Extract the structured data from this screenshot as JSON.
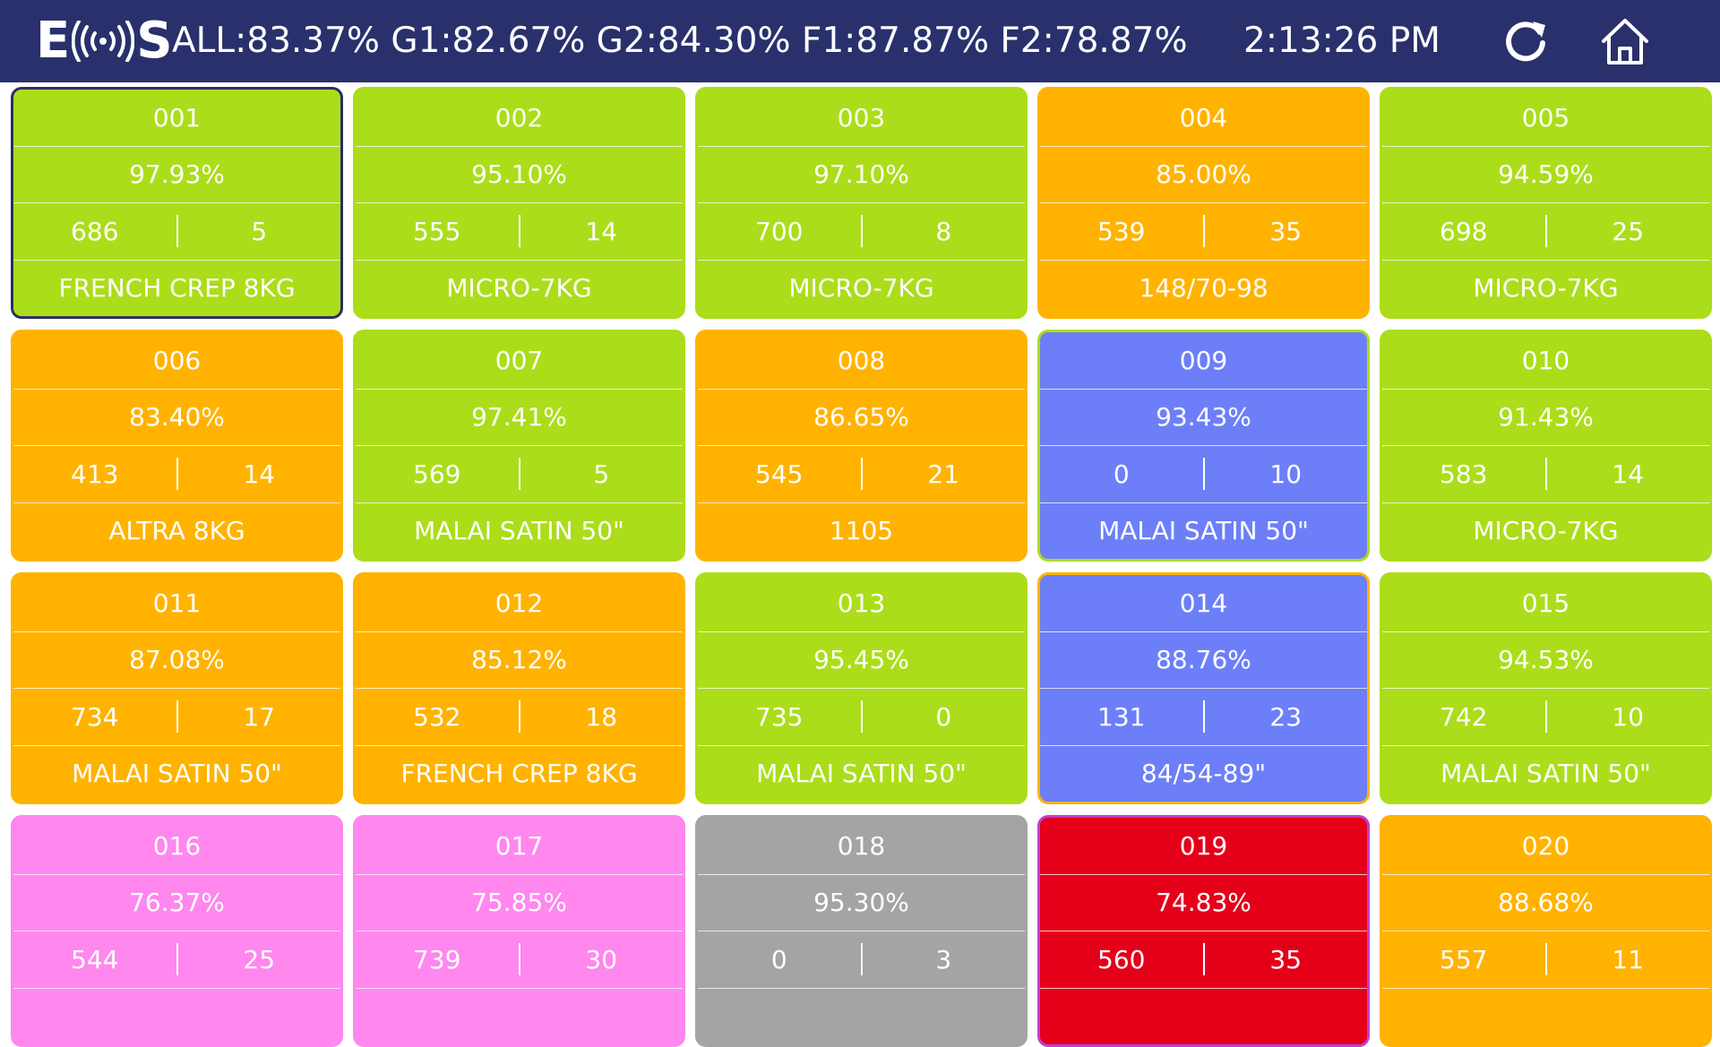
{
  "header": {
    "logo_left": "E",
    "logo_right": "S",
    "stats": "ALL:83.37% G1:82.67% G2:84.30% F1:87.87% F2:78.87%",
    "time": "2:13:26 PM",
    "refresh_icon": "refresh-icon",
    "home_icon": "home-icon"
  },
  "colors": {
    "header_bg": "#29306c",
    "green": "#acdd1a",
    "orange": "#ffb300",
    "blue": "#6d7ff8",
    "pink": "#ff87ee",
    "gray": "#a4a4a4",
    "red": "#e5001a"
  },
  "machines": [
    {
      "id": "001",
      "efficiency": "97.93%",
      "left": "686",
      "right": "5",
      "product": "FRENCH CREP 8KG",
      "status": "green",
      "outline": "#2b2f63"
    },
    {
      "id": "002",
      "efficiency": "95.10%",
      "left": "555",
      "right": "14",
      "product": "MICRO-7KG",
      "status": "green"
    },
    {
      "id": "003",
      "efficiency": "97.10%",
      "left": "700",
      "right": "8",
      "product": "MICRO-7KG",
      "status": "green"
    },
    {
      "id": "004",
      "efficiency": "85.00%",
      "left": "539",
      "right": "35",
      "product": "148/70-98",
      "status": "orange"
    },
    {
      "id": "005",
      "efficiency": "94.59%",
      "left": "698",
      "right": "25",
      "product": "MICRO-7KG",
      "status": "green"
    },
    {
      "id": "006",
      "efficiency": "83.40%",
      "left": "413",
      "right": "14",
      "product": "ALTRA 8KG",
      "status": "orange"
    },
    {
      "id": "007",
      "efficiency": "97.41%",
      "left": "569",
      "right": "5",
      "product": "MALAI SATIN 50\"",
      "status": "green"
    },
    {
      "id": "008",
      "efficiency": "86.65%",
      "left": "545",
      "right": "21",
      "product": "1105",
      "status": "orange"
    },
    {
      "id": "009",
      "efficiency": "93.43%",
      "left": "0",
      "right": "10",
      "product": "MALAI SATIN 50\"",
      "status": "blue",
      "outline": "#acdd1a"
    },
    {
      "id": "010",
      "efficiency": "91.43%",
      "left": "583",
      "right": "14",
      "product": "MICRO-7KG",
      "status": "green"
    },
    {
      "id": "011",
      "efficiency": "87.08%",
      "left": "734",
      "right": "17",
      "product": "MALAI SATIN 50\"",
      "status": "orange"
    },
    {
      "id": "012",
      "efficiency": "85.12%",
      "left": "532",
      "right": "18",
      "product": "FRENCH CREP 8KG",
      "status": "orange"
    },
    {
      "id": "013",
      "efficiency": "95.45%",
      "left": "735",
      "right": "0",
      "product": "MALAI SATIN 50\"",
      "status": "green"
    },
    {
      "id": "014",
      "efficiency": "88.76%",
      "left": "131",
      "right": "23",
      "product": "84/54-89\"",
      "status": "blue",
      "outline": "#ffb300"
    },
    {
      "id": "015",
      "efficiency": "94.53%",
      "left": "742",
      "right": "10",
      "product": "MALAI SATIN 50\"",
      "status": "green"
    },
    {
      "id": "016",
      "efficiency": "76.37%",
      "left": "544",
      "right": "25",
      "product": "",
      "status": "pink"
    },
    {
      "id": "017",
      "efficiency": "75.85%",
      "left": "739",
      "right": "30",
      "product": "",
      "status": "pink"
    },
    {
      "id": "018",
      "efficiency": "95.30%",
      "left": "0",
      "right": "3",
      "product": "",
      "status": "gray"
    },
    {
      "id": "019",
      "efficiency": "74.83%",
      "left": "560",
      "right": "35",
      "product": "",
      "status": "red",
      "outline": "#c13fd0"
    },
    {
      "id": "020",
      "efficiency": "88.68%",
      "left": "557",
      "right": "11",
      "product": "",
      "status": "orange"
    }
  ]
}
